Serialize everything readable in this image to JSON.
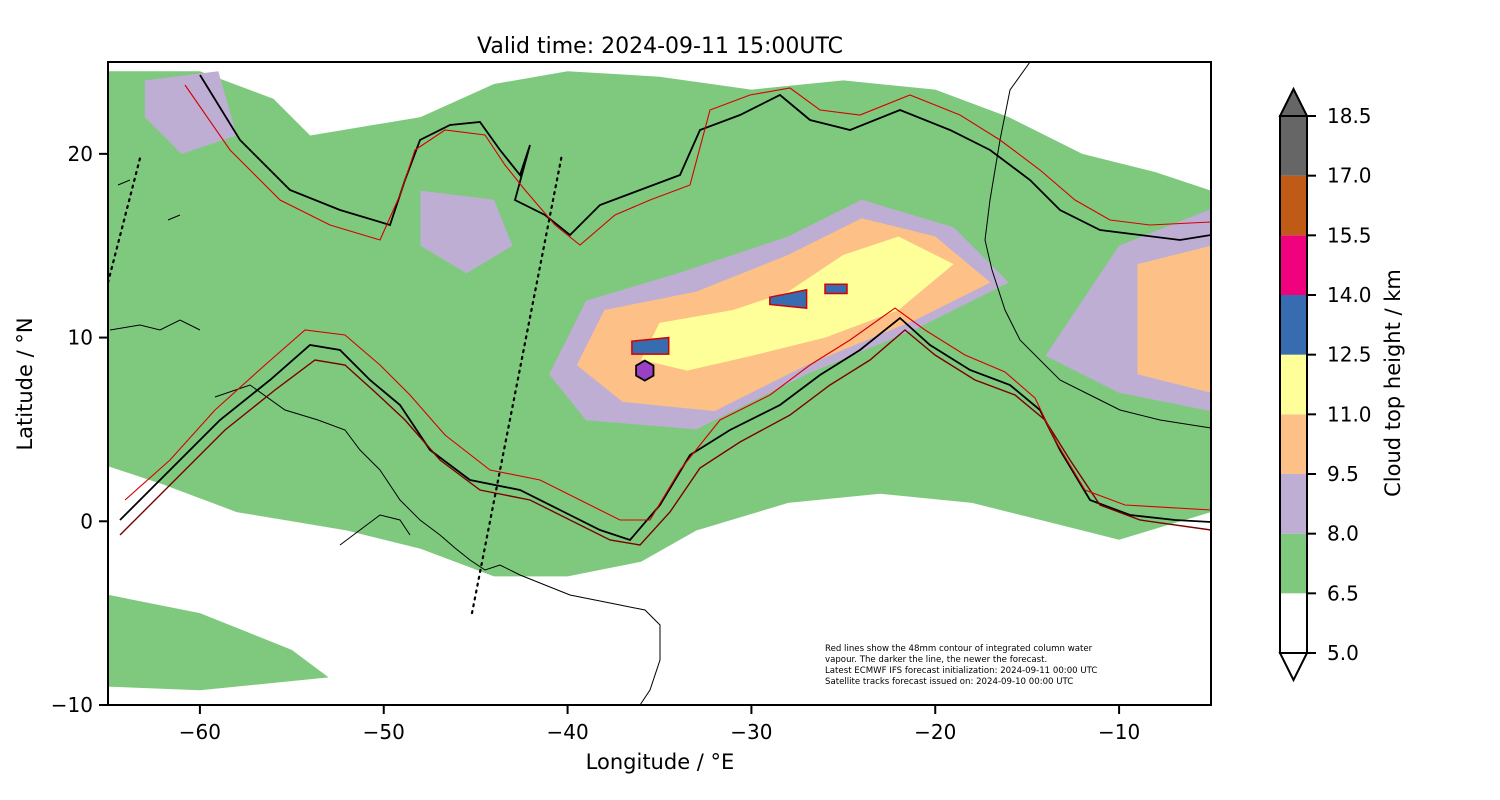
{
  "title": "Valid time: 2024-09-11 15:00UTC",
  "xlabel": "Longitude / °E",
  "ylabel": "Latitude / °N",
  "colorbar_label": "Cloud top height / km",
  "notes": [
    "Red lines show the 48mm contour of integrated column water",
    "vapour. The darker the line, the newer the forecast.",
    "Latest ECMWF IFS forecast initialization: 2024-09-11 00:00 UTC",
    "Satellite tracks forecast issued on: 2024-09-10 00:00 UTC"
  ],
  "chart_data": {
    "type": "heatmap",
    "title": "Valid time: 2024-09-11 15:00UTC",
    "xlabel": "Longitude / °E",
    "ylabel": "Latitude / °N",
    "xlim": [
      -65,
      -5
    ],
    "ylim": [
      -10,
      25
    ],
    "x_ticks": [
      -60,
      -50,
      -40,
      -30,
      -20,
      -10
    ],
    "y_ticks": [
      -10,
      0,
      10,
      20
    ],
    "x_tick_labels": [
      "−60",
      "−50",
      "−40",
      "−30",
      "−20",
      "−10"
    ],
    "y_tick_labels": [
      "−10",
      "0",
      "10",
      "20"
    ],
    "grid": false,
    "colorbar": {
      "label": "Cloud top height / km",
      "levels": [
        5.0,
        6.5,
        8.0,
        9.5,
        11.0,
        12.5,
        14.0,
        15.5,
        17.0,
        18.5
      ],
      "level_labels": [
        "5.0",
        "6.5",
        "8.0",
        "9.5",
        "11.0",
        "12.5",
        "14.0",
        "15.5",
        "17.0",
        "18.5"
      ],
      "colors": [
        "#ffffff",
        "#7fc97f",
        "#beaed4",
        "#fdc086",
        "#ffff99",
        "#386cb0",
        "#f0027f",
        "#bf5b17",
        "#666666"
      ],
      "extend": "both"
    },
    "cloud_regions": [
      {
        "level": "6.5-8.0",
        "polygon": [
          [
            -54,
            21
          ],
          [
            -48,
            22
          ],
          [
            -44,
            23.8
          ],
          [
            -40,
            24.5
          ],
          [
            -35,
            24.2
          ],
          [
            -30,
            23.5
          ],
          [
            -25,
            24
          ],
          [
            -20,
            23.5
          ],
          [
            -16,
            22
          ],
          [
            -12,
            20
          ],
          [
            -8,
            19
          ],
          [
            -5,
            18
          ],
          [
            -5,
            0.5
          ],
          [
            -10,
            -1
          ],
          [
            -14,
            0
          ],
          [
            -18,
            1
          ],
          [
            -23,
            1.5
          ],
          [
            -28,
            1
          ],
          [
            -33,
            -0.5
          ],
          [
            -36,
            -2.2
          ],
          [
            -40,
            -3
          ],
          [
            -44,
            -3
          ],
          [
            -48,
            -1.5
          ],
          [
            -52,
            -0.5
          ],
          [
            -55,
            0
          ],
          [
            -58,
            0.5
          ],
          [
            -62,
            2
          ],
          [
            -65,
            3
          ],
          [
            -65,
            24.5
          ],
          [
            -60,
            24.5
          ],
          [
            -56,
            23
          ]
        ]
      },
      {
        "level": "6.5-8.0",
        "polygon": [
          [
            -65,
            -4
          ],
          [
            -60,
            -5
          ],
          [
            -55,
            -7
          ],
          [
            -53,
            -8.5
          ],
          [
            -60,
            -9.2
          ],
          [
            -65,
            -9
          ]
        ]
      },
      {
        "level": "8.0-9.5",
        "polygon": [
          [
            -39,
            12
          ],
          [
            -34,
            13.5
          ],
          [
            -28,
            15.5
          ],
          [
            -24,
            17.5
          ],
          [
            -19,
            16
          ],
          [
            -16,
            13
          ],
          [
            -21,
            10.5
          ],
          [
            -27,
            8
          ],
          [
            -33,
            5
          ],
          [
            -39,
            5.5
          ],
          [
            -41,
            8
          ]
        ]
      },
      {
        "level": "8.0-9.5",
        "polygon": [
          [
            -10,
            15
          ],
          [
            -5,
            17
          ],
          [
            -5,
            6
          ],
          [
            -10,
            7
          ],
          [
            -14,
            9
          ]
        ]
      },
      {
        "level": "8.0-9.5",
        "polygon": [
          [
            -63,
            24
          ],
          [
            -59,
            24.5
          ],
          [
            -58,
            21
          ],
          [
            -61,
            20
          ],
          [
            -63,
            22
          ]
        ]
      },
      {
        "level": "8.0-9.5",
        "polygon": [
          [
            -48,
            18
          ],
          [
            -44,
            17.5
          ],
          [
            -43,
            15
          ],
          [
            -45.5,
            13.5
          ],
          [
            -48,
            15
          ]
        ]
      },
      {
        "level": "9.5-11.0",
        "polygon": [
          [
            -38,
            11.5
          ],
          [
            -33,
            12.5
          ],
          [
            -28,
            14.5
          ],
          [
            -24,
            16.5
          ],
          [
            -20,
            15.5
          ],
          [
            -17,
            13
          ],
          [
            -21,
            11
          ],
          [
            -27,
            8.5
          ],
          [
            -32,
            6
          ],
          [
            -37,
            6.5
          ],
          [
            -39.5,
            8.5
          ]
        ]
      },
      {
        "level": "9.5-11.0",
        "polygon": [
          [
            -9,
            14
          ],
          [
            -5,
            15
          ],
          [
            -5,
            7
          ],
          [
            -9,
            8
          ]
        ]
      },
      {
        "level": "11.0-12.5",
        "polygon": [
          [
            -35,
            10.8
          ],
          [
            -31,
            11.5
          ],
          [
            -28,
            12.5
          ],
          [
            -25,
            14.5
          ],
          [
            -22,
            15.5
          ],
          [
            -19,
            14
          ],
          [
            -22,
            11.5
          ],
          [
            -26,
            10
          ],
          [
            -30,
            9
          ],
          [
            -33.5,
            8.2
          ],
          [
            -36,
            8.8
          ]
        ]
      },
      {
        "level": "12.5-14.0",
        "polygon": [
          [
            -36.5,
            9.8
          ],
          [
            -34.5,
            10
          ],
          [
            -34.5,
            9.1
          ],
          [
            -36.5,
            9.1
          ]
        ]
      },
      {
        "level": "12.5-14.0",
        "polygon": [
          [
            -29,
            12.2
          ],
          [
            -27,
            12.6
          ],
          [
            -27,
            11.6
          ],
          [
            -29,
            11.8
          ]
        ]
      },
      {
        "level": "12.5-14.0",
        "polygon": [
          [
            -26,
            12.9
          ],
          [
            -24.8,
            12.9
          ],
          [
            -24.8,
            12.4
          ],
          [
            -26,
            12.4
          ]
        ]
      }
    ],
    "markers": [
      {
        "name": "hexagon",
        "lon": -35.8,
        "lat": 8.2
      }
    ],
    "satellite_tracks": [
      {
        "style": "dotted",
        "points": [
          [
            -65,
            13
          ],
          [
            -63.2,
            20
          ]
        ]
      },
      {
        "style": "dotted",
        "points": [
          [
            -45.2,
            -5
          ],
          [
            -40.3,
            20
          ]
        ]
      }
    ]
  }
}
